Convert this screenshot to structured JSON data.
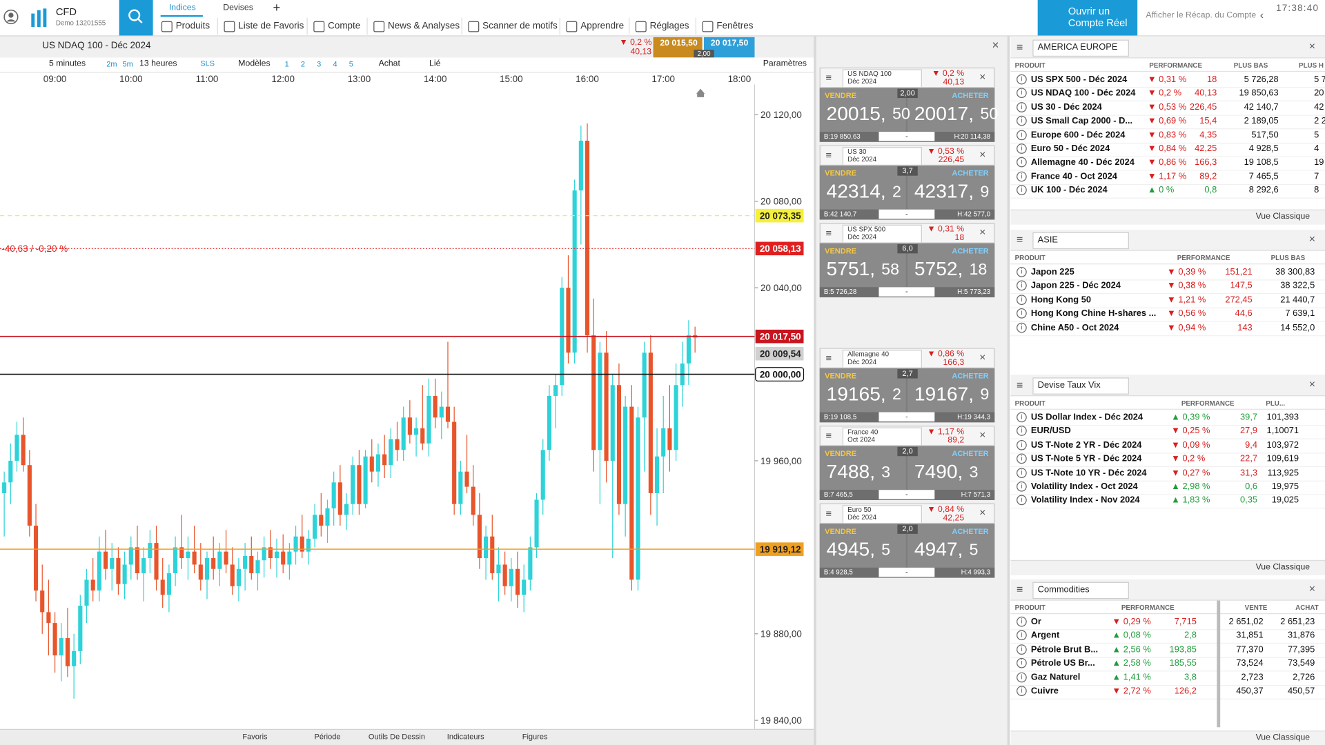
{
  "header": {
    "logo": "CFD",
    "account": "Demo 13201555",
    "tabs": [
      "Indices",
      "Devises",
      "+"
    ],
    "menu": [
      "Produits",
      "Liste de Favoris",
      "Compte",
      "News & Analyses",
      "Scanner de motifs",
      "Apprendre",
      "Réglages",
      "Fenêtres"
    ],
    "open_account": "Ouvrir un Compte Réel",
    "summary": "Afficher le Récap. du Compte",
    "clock": "17:38:40"
  },
  "chart_panel": {
    "instrument": "US NDAQ 100 - Déc 2024",
    "change_pct": "▼ 0,2 %",
    "change": "40,13",
    "sell": "20 015,50",
    "buy": "20 017,50",
    "spread": "2,00",
    "timeframe": "5 minutes",
    "tf_buttons": [
      "2m",
      "5m"
    ],
    "duration": "13 heures",
    "sls": "SLS",
    "models": "Modèles",
    "nums": [
      "1",
      "2",
      "3",
      "4",
      "5"
    ],
    "achat": "Achat",
    "lie": "Lié",
    "params": "Paramètres",
    "footer": [
      "Favoris",
      "Période",
      "Outils De Dessin",
      "Indicateurs",
      "Figures"
    ]
  },
  "chart_data": {
    "type": "candlestick",
    "up_color": "#2dd3d8",
    "down_color": "#e8552b",
    "xticks": [
      "09:00",
      "10:00",
      "11:00",
      "12:00",
      "13:00",
      "14:00",
      "15:00",
      "16:00",
      "17:00",
      "18:00"
    ],
    "ylim": [
      19836,
      20134
    ],
    "yticks": [
      {
        "value": 20120,
        "label": "20 120,00"
      },
      {
        "value": 20080,
        "label": "20 080,00"
      },
      {
        "value": 20040,
        "label": "20 040,00"
      },
      {
        "value": 19960,
        "label": "19 960,00"
      },
      {
        "value": 19880,
        "label": "19 880,00"
      },
      {
        "value": 19840,
        "label": "19 840,00"
      }
    ],
    "levels": [
      {
        "value": 20073.35,
        "label": "20 073,35",
        "color": "#f5f03a",
        "text_color": "#222",
        "line": "dashed"
      },
      {
        "value": 20058.13,
        "label": "20 058,13",
        "color": "#e02020",
        "text_color": "#fff",
        "line": "dotted"
      },
      {
        "value": 20017.5,
        "label": "20 017,50",
        "color": "#c8141e",
        "text_color": "#fff",
        "line": "solid"
      },
      {
        "value": 20009.54,
        "label": "20 009,54",
        "color": "#d0d0d0",
        "text_color": "#222",
        "line": "none"
      },
      {
        "value": 20000,
        "label": "20 000,00",
        "color": "#111",
        "text_color": "#111",
        "line": "solid"
      },
      {
        "value": 19919.12,
        "label": "19 919,12",
        "color": "#f0a020",
        "text_color": "#222",
        "line": "solid"
      }
    ],
    "annotation": "-40,63 / -0,20 %",
    "candles": [
      [
        19945,
        19955,
        19925,
        19950
      ],
      [
        19950,
        19968,
        19940,
        19960
      ],
      [
        19960,
        19978,
        19955,
        19972
      ],
      [
        19972,
        19980,
        19955,
        19958
      ],
      [
        19958,
        19965,
        19925,
        19930
      ],
      [
        19930,
        19940,
        19895,
        19900
      ],
      [
        19900,
        19912,
        19880,
        19890
      ],
      [
        19890,
        19905,
        19870,
        19885
      ],
      [
        19885,
        19890,
        19862,
        19870
      ],
      [
        19870,
        19885,
        19858,
        19878
      ],
      [
        19878,
        19892,
        19860,
        19865
      ],
      [
        19865,
        19880,
        19850,
        19872
      ],
      [
        19872,
        19898,
        19866,
        19893
      ],
      [
        19893,
        19910,
        19885,
        19905
      ],
      [
        19905,
        19915,
        19895,
        19900
      ],
      [
        19900,
        19925,
        19895,
        19918
      ],
      [
        19918,
        19928,
        19905,
        19910
      ],
      [
        19910,
        19922,
        19900,
        19915
      ],
      [
        19915,
        19920,
        19898,
        19903
      ],
      [
        19903,
        19918,
        19896,
        19912
      ],
      [
        19912,
        19925,
        19905,
        19920
      ],
      [
        19920,
        19930,
        19905,
        19908
      ],
      [
        19908,
        19920,
        19895,
        19915
      ],
      [
        19915,
        19928,
        19908,
        19922
      ],
      [
        19922,
        19930,
        19900,
        19905
      ],
      [
        19905,
        19915,
        19892,
        19898
      ],
      [
        19898,
        19912,
        19890,
        19908
      ],
      [
        19908,
        19925,
        19902,
        19920
      ],
      [
        19920,
        19935,
        19910,
        19915
      ],
      [
        19915,
        19925,
        19905,
        19918
      ],
      [
        19918,
        19930,
        19908,
        19912
      ],
      [
        19912,
        19922,
        19900,
        19905
      ],
      [
        19905,
        19918,
        19896,
        19915
      ],
      [
        19915,
        19925,
        19905,
        19910
      ],
      [
        19910,
        19922,
        19902,
        19918
      ],
      [
        19918,
        19928,
        19908,
        19912
      ],
      [
        19912,
        19920,
        19898,
        19902
      ],
      [
        19902,
        19915,
        19895,
        19910
      ],
      [
        19910,
        19922,
        19900,
        19916
      ],
      [
        19916,
        19925,
        19905,
        19908
      ],
      [
        19908,
        19918,
        19900,
        19914
      ],
      [
        19914,
        19925,
        19906,
        19920
      ],
      [
        19920,
        19928,
        19910,
        19915
      ],
      [
        19915,
        19924,
        19906,
        19918
      ],
      [
        19918,
        19926,
        19908,
        19912
      ],
      [
        19912,
        19922,
        19905,
        19918
      ],
      [
        19918,
        19930,
        19912,
        19925
      ],
      [
        19925,
        19935,
        19915,
        19918
      ],
      [
        19918,
        19928,
        19912,
        19924
      ],
      [
        19924,
        19940,
        19920,
        19935
      ],
      [
        19935,
        19945,
        19925,
        19930
      ],
      [
        19930,
        19942,
        19922,
        19938
      ],
      [
        19938,
        19955,
        19930,
        19950
      ],
      [
        19950,
        19958,
        19930,
        19935
      ],
      [
        19935,
        19945,
        19928,
        19940
      ],
      [
        19940,
        19962,
        19935,
        19958
      ],
      [
        19958,
        19965,
        19935,
        19940
      ],
      [
        19940,
        19965,
        19938,
        19962
      ],
      [
        19962,
        19970,
        19950,
        19955
      ],
      [
        19955,
        19968,
        19948,
        19963
      ],
      [
        19963,
        19972,
        19952,
        19958
      ],
      [
        19958,
        19975,
        19952,
        19970
      ],
      [
        19970,
        19978,
        19960,
        19965
      ],
      [
        19965,
        19985,
        19960,
        19980
      ],
      [
        19980,
        19988,
        19968,
        19972
      ],
      [
        19972,
        19980,
        19962,
        19975
      ],
      [
        19975,
        19995,
        19965,
        19968
      ],
      [
        19968,
        19998,
        19962,
        19990
      ],
      [
        19990,
        19998,
        19975,
        19980
      ],
      [
        19980,
        19992,
        19970,
        19985
      ],
      [
        19985,
        20015,
        19975,
        19978
      ],
      [
        19978,
        19985,
        19935,
        19940
      ],
      [
        19940,
        19960,
        19935,
        19955
      ],
      [
        19955,
        19972,
        19945,
        19948
      ],
      [
        19948,
        19958,
        19930,
        19935
      ],
      [
        19935,
        19945,
        19910,
        19915
      ],
      [
        19915,
        19930,
        19905,
        19925
      ],
      [
        19925,
        19935,
        19905,
        19908
      ],
      [
        19908,
        19920,
        19895,
        19912
      ],
      [
        19912,
        19918,
        19898,
        19902
      ],
      [
        19902,
        19915,
        19895,
        19910
      ],
      [
        19910,
        19918,
        19892,
        19898
      ],
      [
        19898,
        19912,
        19890,
        19905
      ],
      [
        19905,
        19925,
        19900,
        19920
      ],
      [
        19920,
        19945,
        19915,
        19942
      ],
      [
        19942,
        19970,
        19935,
        19965
      ],
      [
        19965,
        19995,
        19960,
        19990
      ],
      [
        19990,
        20000,
        19975,
        19995
      ],
      [
        19995,
        20045,
        19990,
        20040
      ],
      [
        20040,
        20055,
        20005,
        20010
      ],
      [
        20010,
        20090,
        20005,
        20085
      ],
      [
        20085,
        20115,
        20060,
        20108
      ],
      [
        20108,
        20116,
        20010,
        20018
      ],
      [
        20018,
        20035,
        19955,
        19965
      ],
      [
        19965,
        20015,
        19940,
        20010
      ],
      [
        20010,
        20020,
        19950,
        19960
      ],
      [
        19960,
        20000,
        19915,
        19995
      ],
      [
        19995,
        20005,
        19935,
        19940
      ],
      [
        19940,
        19990,
        19925,
        19985
      ],
      [
        19985,
        19995,
        19900,
        19905
      ],
      [
        19905,
        19985,
        19900,
        19980
      ],
      [
        19980,
        20015,
        19955,
        20010
      ],
      [
        20010,
        20018,
        19935,
        19945
      ],
      [
        19945,
        19975,
        19930,
        19962
      ],
      [
        19962,
        19990,
        19945,
        19975
      ],
      [
        19975,
        19995,
        19955,
        19965
      ],
      [
        19965,
        20005,
        19960,
        19995
      ],
      [
        19995,
        20015,
        19985,
        20005
      ],
      [
        20005,
        20025,
        19995,
        20018
      ],
      [
        20018,
        20022,
        20010,
        20017
      ]
    ]
  },
  "ticket_labels": {
    "sell": "VENDRE",
    "buy": "ACHETER",
    "qty": "-"
  },
  "tickets": [
    {
      "name": "US NDAQ 100",
      "expiry": "Déc 2024",
      "change_pct": "▼ 0,2 %",
      "change": "40,13",
      "spread": "2,00",
      "sell": [
        "20015,",
        "50"
      ],
      "buy": [
        "20017,",
        "50"
      ],
      "low": "B:19 850,63",
      "high": "H:20 114,38"
    },
    {
      "name": "US 30",
      "expiry": "Déc 2024",
      "change_pct": "▼ 0,53 %",
      "change": "226,45",
      "spread": "3,7",
      "sell": [
        "42314,",
        "2"
      ],
      "buy": [
        "42317,",
        "9"
      ],
      "low": "B:42 140,7",
      "high": "H:42 577,0"
    },
    {
      "name": "US SPX 500",
      "expiry": "Déc 2024",
      "change_pct": "▼ 0,31 %",
      "change": "18",
      "spread": "6,0",
      "sell": [
        "5751,",
        "58"
      ],
      "buy": [
        "5752,",
        "18"
      ],
      "low": "B:5 726,28",
      "high": "H:5 773,23"
    },
    {
      "name": "Allemagne 40",
      "expiry": "Déc 2024",
      "change_pct": "▼ 0,86 %",
      "change": "166,3",
      "spread": "2,7",
      "sell": [
        "19165,",
        "2"
      ],
      "buy": [
        "19167,",
        "9"
      ],
      "low": "B:19 108,5",
      "high": "H:19 344,3"
    },
    {
      "name": "France 40",
      "expiry": "Oct 2024",
      "change_pct": "▼ 1,17 %",
      "change": "89,2",
      "spread": "2,0",
      "sell": [
        "7488,",
        "3"
      ],
      "buy": [
        "7490,",
        "3"
      ],
      "low": "B:7 465,5",
      "high": "H:7 571,3"
    },
    {
      "name": "Euro 50",
      "expiry": "Déc 2024",
      "change_pct": "▼ 0,84 %",
      "change": "42,25",
      "spread": "2,0",
      "sell": [
        "4945,",
        "5"
      ],
      "buy": [
        "4947,",
        "5"
      ],
      "low": "B:4 928,5",
      "high": "H:4 993,3"
    }
  ],
  "watchlists": [
    {
      "title": "AMERICA EUROPE",
      "columns": [
        "PRODUIT",
        "PERFORMANCE",
        "PLUS BAS",
        "PLUS H"
      ],
      "footer": "Vue Classique",
      "rows": [
        [
          "US SPX 500 - Déc 2024",
          "▼ 0,31 %",
          "18",
          "5 726,28",
          "5 7"
        ],
        [
          "US NDAQ 100 - Déc 2024",
          "▼ 0,2 %",
          "40,13",
          "19 850,63",
          "20"
        ],
        [
          "US 30 - Déc 2024",
          "▼ 0,53 %",
          "226,45",
          "42 140,7",
          "42"
        ],
        [
          "US Small Cap 2000 - D...",
          "▼ 0,69 %",
          "15,4",
          "2 189,05",
          "2 2"
        ],
        [
          "Europe 600 - Déc 2024",
          "▼ 0,83 %",
          "4,35",
          "517,50",
          "5"
        ],
        [
          "Euro 50 - Déc 2024",
          "▼ 0,84 %",
          "42,25",
          "4 928,5",
          "4"
        ],
        [
          "Allemagne 40 - Déc 2024",
          "▼ 0,86 %",
          "166,3",
          "19 108,5",
          "19"
        ],
        [
          "France 40 - Oct 2024",
          "▼ 1,17 %",
          "89,2",
          "7 465,5",
          "7"
        ],
        [
          "UK 100 - Déc 2024",
          "▲ 0 %",
          "0,8",
          "8 292,6",
          "8"
        ]
      ]
    },
    {
      "title": "ASIE",
      "columns": [
        "PRODUIT",
        "PERFORMANCE",
        "PLUS BAS"
      ],
      "rows": [
        [
          "Japon 225",
          "▼ 0,39 %",
          "151,21",
          "38 300,83"
        ],
        [
          "Japon 225 - Déc 2024",
          "▼ 0,38 %",
          "147,5",
          "38 322,5"
        ],
        [
          "Hong Kong 50",
          "▼ 1,21 %",
          "272,45",
          "21 440,7"
        ],
        [
          "Hong Kong Chine H-shares ...",
          "▼ 0,56 %",
          "44,6",
          "7 639,1"
        ],
        [
          "Chine A50 - Oct 2024",
          "▼ 0,94 %",
          "143",
          "14 552,0"
        ]
      ]
    },
    {
      "title": "Devise Taux Vix",
      "columns": [
        "PRODUIT",
        "PERFORMANCE",
        "PLU..."
      ],
      "footer": "Vue Classique",
      "rows": [
        [
          "US Dollar Index - Déc 2024",
          "▲ 0,39 %",
          "39,7",
          "101,393"
        ],
        [
          "EUR/USD",
          "▼ 0,25 %",
          "27,9",
          "1,10071"
        ],
        [
          "US T-Note 2 YR - Déc 2024",
          "▼ 0,09 %",
          "9,4",
          "103,972"
        ],
        [
          "US T-Note 5 YR - Déc 2024",
          "▼ 0,2 %",
          "22,7",
          "109,619"
        ],
        [
          "US T-Note 10 YR - Déc 2024",
          "▼ 0,27 %",
          "31,3",
          "113,925"
        ],
        [
          "Volatility Index - Oct 2024",
          "▲ 2,98 %",
          "0,6",
          "19,975"
        ],
        [
          "Volatility Index - Nov 2024",
          "▲ 1,83 %",
          "0,35",
          "19,025"
        ]
      ]
    },
    {
      "title": "Commodities",
      "columns": [
        "PRODUIT",
        "PERFORMANCE",
        "VENTE",
        "ACHAT"
      ],
      "footer": "Vue Classique",
      "rows": [
        [
          "Or",
          "▼ 0,29 %",
          "7,715",
          "2 651,02",
          "2 651,23"
        ],
        [
          "Argent",
          "▲ 0,08 %",
          "2,8",
          "31,851",
          "31,876"
        ],
        [
          "Pétrole Brut B...",
          "▲ 2,56 %",
          "193,85",
          "77,370",
          "77,395"
        ],
        [
          "Pétrole US Br...",
          "▲ 2,58 %",
          "185,55",
          "73,524",
          "73,549"
        ],
        [
          "Gaz Naturel",
          "▲ 1,41 %",
          "3,8",
          "2,723",
          "2,726"
        ],
        [
          "Cuivre",
          "▼ 2,72 %",
          "126,2",
          "450,37",
          "450,57"
        ]
      ]
    }
  ]
}
